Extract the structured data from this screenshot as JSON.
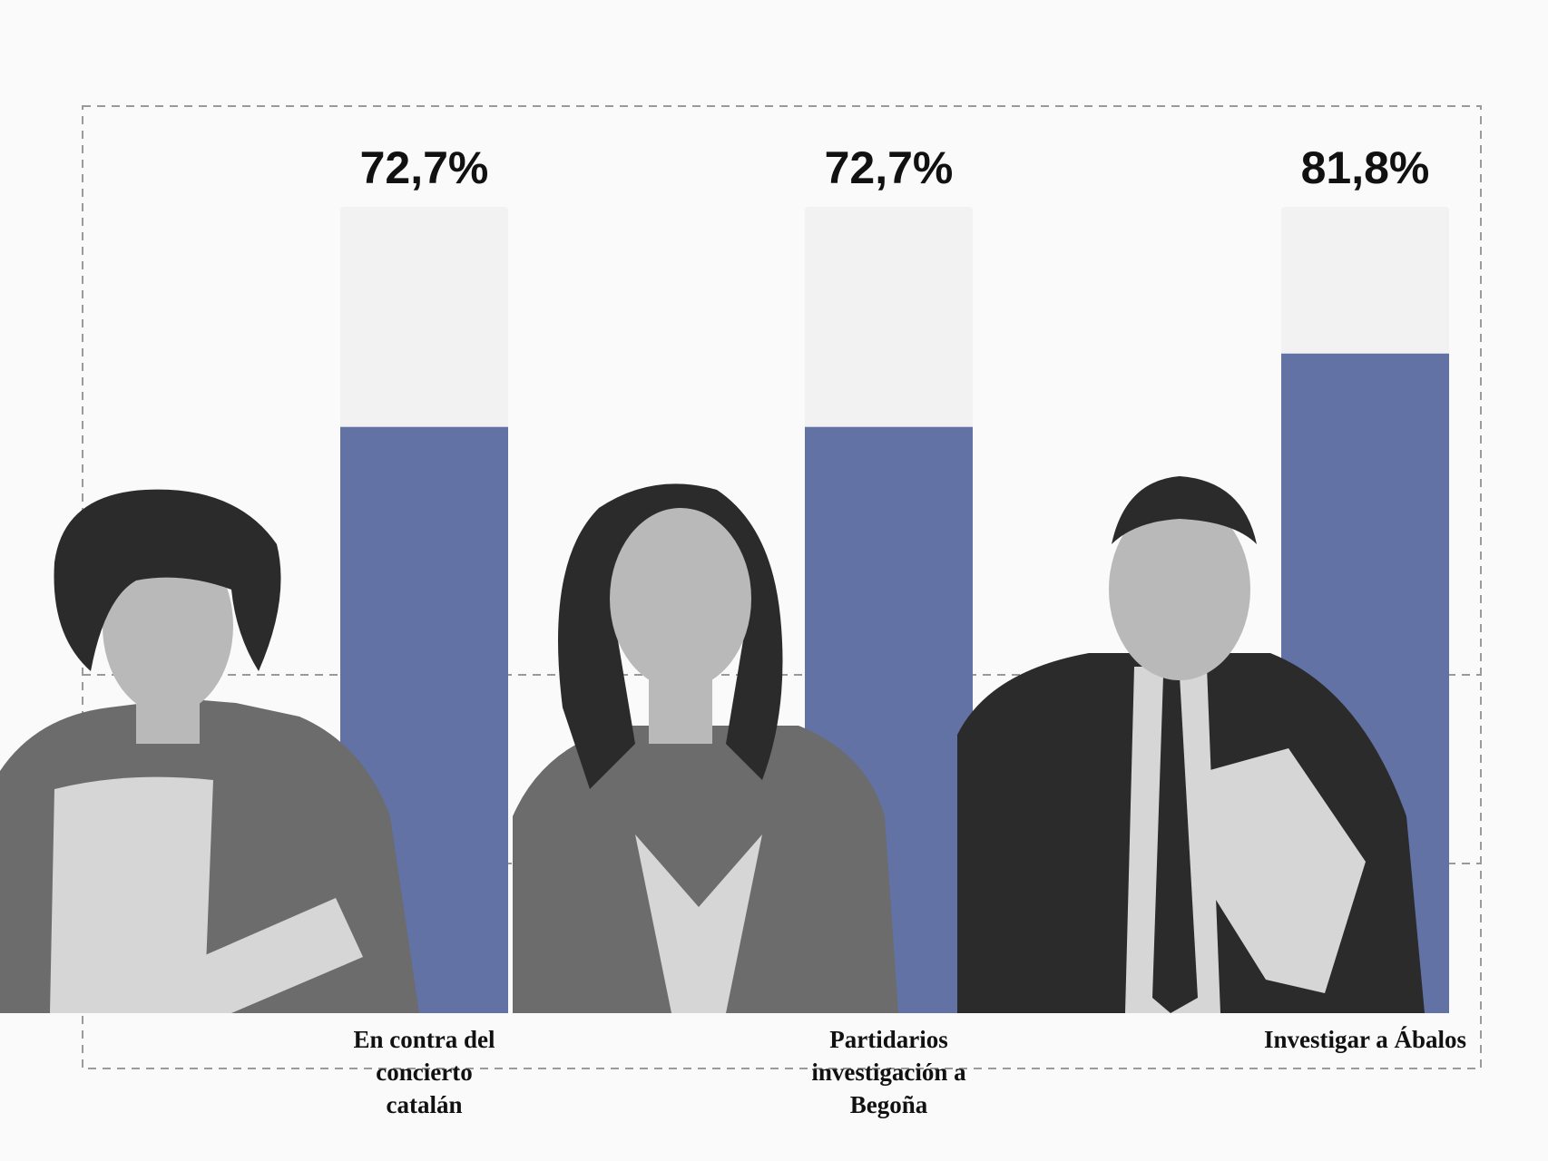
{
  "chart_data": {
    "type": "bar",
    "categories": [
      [
        "En contra del",
        "concierto",
        "catalán"
      ],
      [
        "Partidarios",
        "investigación a",
        "Begoña"
      ],
      [
        "Investigar a Ábalos"
      ]
    ],
    "values": [
      72.7,
      72.7,
      81.8
    ],
    "value_labels": [
      "72,7%",
      "72,7%",
      "81,8%"
    ],
    "ylim": [
      0,
      100
    ],
    "grid": "dashed",
    "title": "",
    "xlabel": "",
    "ylabel": ""
  },
  "colors": {
    "bar_fill": "#6272a4",
    "bar_track": "#f2f2f2",
    "grid": "#9a9a9a",
    "background": "#fafafa"
  },
  "photos": [
    {
      "name": "woman-curly-hair-photo"
    },
    {
      "name": "woman-long-hair-photo"
    },
    {
      "name": "man-suit-photo"
    }
  ]
}
